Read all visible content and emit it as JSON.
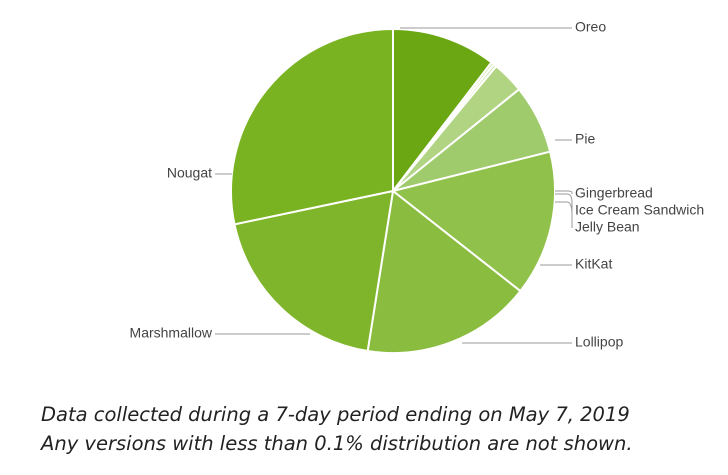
{
  "chart_data": {
    "type": "pie",
    "title": "",
    "start_angle_deg": 90,
    "direction": "clockwise",
    "slices": [
      {
        "label": "Pie",
        "value": 10.4,
        "color": "#6aa713"
      },
      {
        "label": "Gingerbread",
        "value": 0.3,
        "color": "#d2e6b4"
      },
      {
        "label": "Ice Cream Sandwich",
        "value": 0.3,
        "color": "#c6dfa2"
      },
      {
        "label": "Jelly Bean",
        "value": 3.2,
        "color": "#b0d482"
      },
      {
        "label": "KitKat",
        "value": 6.9,
        "color": "#9fcb6d"
      },
      {
        "label": "Lollipop",
        "value": 14.5,
        "color": "#90c14a"
      },
      {
        "label": "Marshmallow",
        "value": 16.9,
        "color": "#89bc3f"
      },
      {
        "label": "Nougat",
        "value": 19.2,
        "color": "#7fb52b"
      },
      {
        "label": "Oreo",
        "value": 28.3,
        "color": "#79b321"
      }
    ]
  },
  "caption": {
    "line1": "Data collected during a 7-day period ending on May 7, 2019",
    "line2": "Any versions with less than 0.1% distribution are not shown."
  }
}
